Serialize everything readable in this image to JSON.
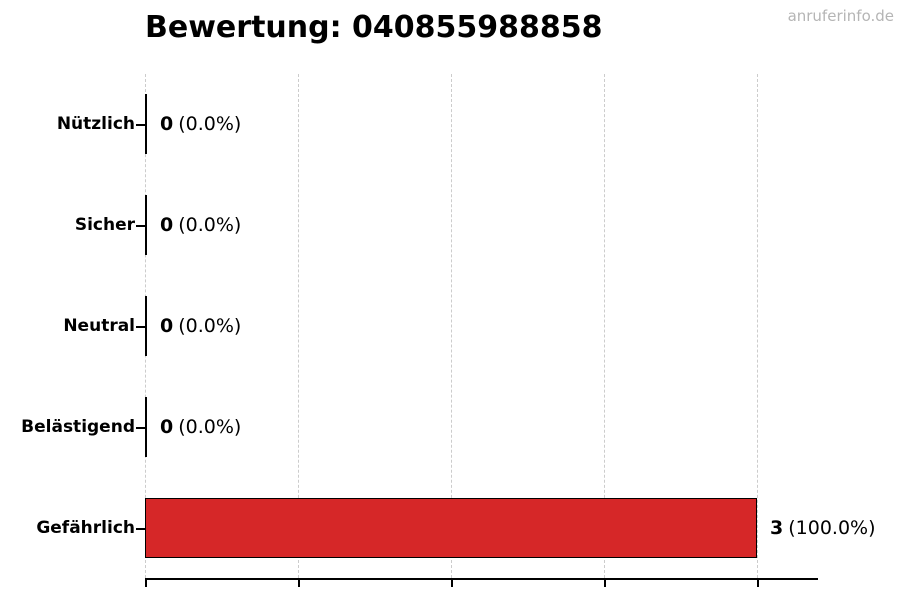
{
  "header": {
    "title": "Bewertung: 040855988858",
    "watermark": "anruferinfo.de"
  },
  "chart_data": {
    "type": "bar",
    "orientation": "horizontal",
    "title": "Bewertung: 040855988858",
    "categories": [
      "Nützlich",
      "Sicher",
      "Neutral",
      "Belästigend",
      "Gefährlich"
    ],
    "values": [
      0,
      0,
      0,
      0,
      3
    ],
    "total": 3,
    "xlim": [
      0,
      3.3
    ],
    "grid": "vertical dashed, 5 unlabeled ticks at 0, 0.75, 1.5, 2.25, 3",
    "legend": "none",
    "rows": [
      {
        "label": "Nützlich",
        "count": "0",
        "percent": "(0.0%)"
      },
      {
        "label": "Sicher",
        "count": "0",
        "percent": "(0.0%)"
      },
      {
        "label": "Neutral",
        "count": "0",
        "percent": "(0.0%)"
      },
      {
        "label": "Belästigend",
        "count": "0",
        "percent": "(0.0%)"
      },
      {
        "label": "Gefährlich",
        "count": "3",
        "percent": "(100.0%)"
      }
    ]
  },
  "colors": {
    "bar": "#d62728",
    "bar_edge": "#000000",
    "zero_bar": "#000000",
    "gridline": "#cccccc",
    "axis": "#000000",
    "watermark": "#b5b5b5",
    "text": "#000000"
  }
}
